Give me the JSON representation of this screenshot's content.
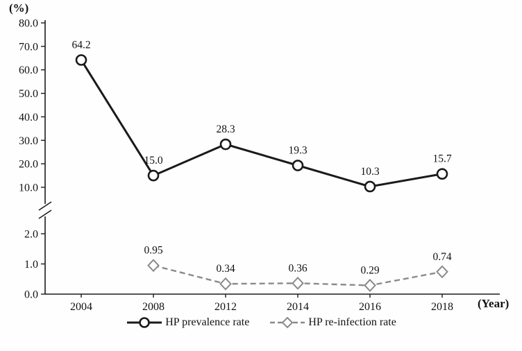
{
  "chart_data": {
    "type": "line",
    "title": "",
    "ylabel": "(%)",
    "xlabel": "(Year)",
    "x": [
      "2004",
      "2008",
      "2012",
      "2014",
      "2016",
      "2018"
    ],
    "series": [
      {
        "name": "HP prevalence rate",
        "values": [
          64.2,
          15.0,
          28.3,
          19.3,
          10.3,
          15.7
        ],
        "labels": [
          "64.2",
          "15.0",
          "28.3",
          "19.3",
          "10.3",
          "15.7"
        ],
        "line_style": "solid",
        "marker": "circle",
        "color": "#1a1a1a"
      },
      {
        "name": "HP re-infection rate",
        "values": [
          null,
          0.95,
          0.34,
          0.36,
          0.29,
          0.74
        ],
        "labels": [
          "",
          "0.95",
          "0.34",
          "0.36",
          "0.29",
          "0.74"
        ],
        "line_style": "dashed",
        "marker": "diamond",
        "color": "#8a8a8a"
      }
    ],
    "axis_break": true,
    "upper_axis": {
      "min": 10,
      "max": 80,
      "ticks": [
        "80.0",
        "70.0",
        "60.0",
        "50.0",
        "40.0",
        "30.0",
        "20.0",
        "10.0"
      ]
    },
    "lower_axis": {
      "min": 0,
      "max": 2,
      "ticks": [
        "2.0",
        "1.0",
        "0.0"
      ]
    },
    "legend_position": "bottom",
    "grid": false
  }
}
